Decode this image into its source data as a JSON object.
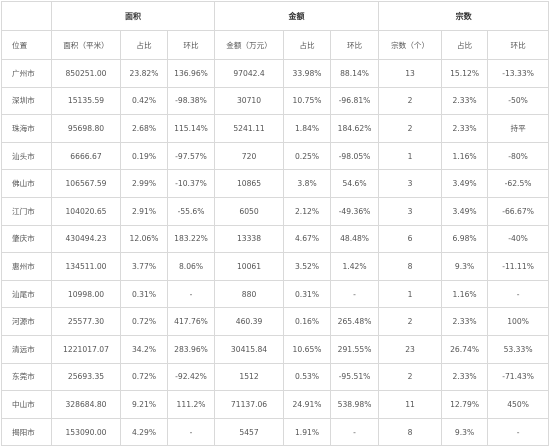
{
  "groups": [
    "面积",
    "金额",
    "宗数"
  ],
  "columns": [
    "位置",
    "面积（平米）",
    "占比",
    "环比",
    "金额（万元）",
    "占比",
    "环比",
    "宗数（个）",
    "占比",
    "环比"
  ],
  "rows": [
    [
      "广州市",
      "850251.00",
      "23.82%",
      "136.96%",
      "97042.4",
      "33.98%",
      "88.14%",
      "13",
      "15.12%",
      "-13.33%"
    ],
    [
      "深圳市",
      "15135.59",
      "0.42%",
      "-98.38%",
      "30710",
      "10.75%",
      "-96.81%",
      "2",
      "2.33%",
      "-50%"
    ],
    [
      "珠海市",
      "95698.80",
      "2.68%",
      "115.14%",
      "5241.11",
      "1.84%",
      "184.62%",
      "2",
      "2.33%",
      "持平"
    ],
    [
      "汕头市",
      "6666.67",
      "0.19%",
      "-97.57%",
      "720",
      "0.25%",
      "-98.05%",
      "1",
      "1.16%",
      "-80%"
    ],
    [
      "佛山市",
      "106567.59",
      "2.99%",
      "-10.37%",
      "10865",
      "3.8%",
      "54.6%",
      "3",
      "3.49%",
      "-62.5%"
    ],
    [
      "江门市",
      "104020.65",
      "2.91%",
      "-55.6%",
      "6050",
      "2.12%",
      "-49.36%",
      "3",
      "3.49%",
      "-66.67%"
    ],
    [
      "肇庆市",
      "430494.23",
      "12.06%",
      "183.22%",
      "13338",
      "4.67%",
      "48.48%",
      "6",
      "6.98%",
      "-40%"
    ],
    [
      "惠州市",
      "134511.00",
      "3.77%",
      "8.06%",
      "10061",
      "3.52%",
      "1.42%",
      "8",
      "9.3%",
      "-11.11%"
    ],
    [
      "汕尾市",
      "10998.00",
      "0.31%",
      "-",
      "880",
      "0.31%",
      "-",
      "1",
      "1.16%",
      "-"
    ],
    [
      "河源市",
      "25577.30",
      "0.72%",
      "417.76%",
      "460.39",
      "0.16%",
      "265.48%",
      "2",
      "2.33%",
      "100%"
    ],
    [
      "清远市",
      "1221017.07",
      "34.2%",
      "283.96%",
      "30415.84",
      "10.65%",
      "291.55%",
      "23",
      "26.74%",
      "53.33%"
    ],
    [
      "东莞市",
      "25693.35",
      "0.72%",
      "-92.42%",
      "1512",
      "0.53%",
      "-95.51%",
      "2",
      "2.33%",
      "-71.43%"
    ],
    [
      "中山市",
      "328684.80",
      "9.21%",
      "111.2%",
      "71137.06",
      "24.91%",
      "538.98%",
      "11",
      "12.79%",
      "450%"
    ],
    [
      "揭阳市",
      "153090.00",
      "4.29%",
      "-",
      "5457",
      "1.91%",
      "-",
      "8",
      "9.3%",
      "-"
    ]
  ]
}
